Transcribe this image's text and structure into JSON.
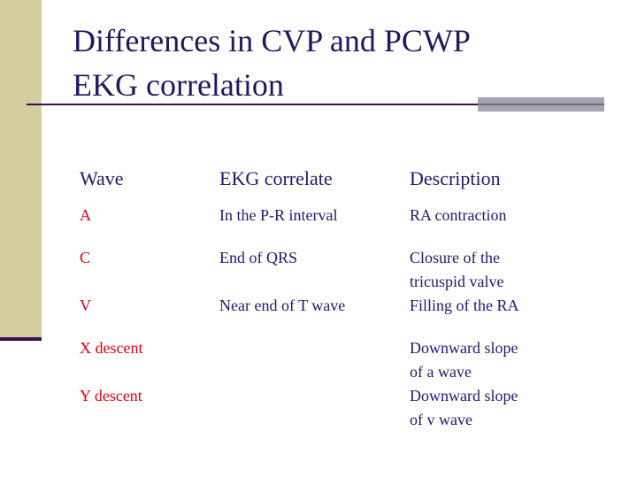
{
  "header": {
    "title": [
      "Differences in CVP and PCWP",
      "EKG correlation"
    ]
  },
  "table": {
    "columns": [
      "Wave",
      "EKG correlate",
      "Description"
    ],
    "rows": [
      {
        "wave": "A",
        "ekg": "In the P-R interval",
        "description": [
          "RA contraction"
        ]
      },
      {
        "wave": "C",
        "ekg": "End of QRS",
        "description": [
          "Closure of the",
          "tricuspid valve"
        ]
      },
      {
        "wave": "V",
        "ekg": "Near end of T wave",
        "description": [
          "Filling of the RA"
        ]
      },
      {
        "wave": "X descent",
        "description": [
          "Downward slope",
          "of a wave"
        ]
      },
      {
        "wave": "Y descent",
        "description": [
          "Downward slope",
          "of v wave"
        ]
      }
    ]
  }
}
